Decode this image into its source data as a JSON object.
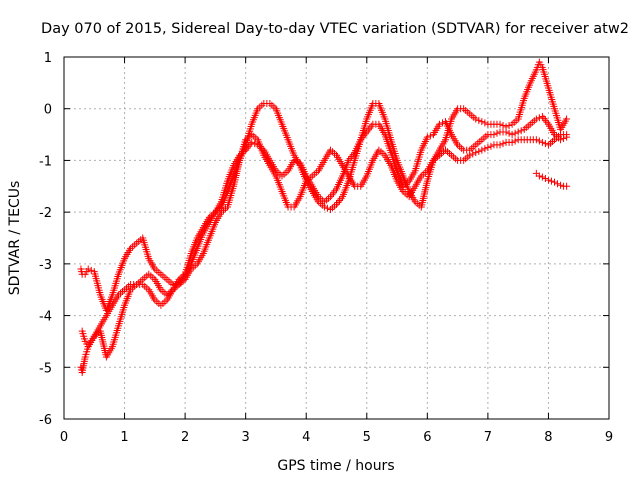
{
  "chart_data": {
    "type": "scatter",
    "title": "Day 070 of 2015, Sidereal Day-to-day VTEC variation (SDTVAR) for receiver atw2",
    "xlabel": "GPS time / hours",
    "ylabel": "SDTVAR / TECUs",
    "xlim": [
      0,
      9
    ],
    "ylim": [
      -6,
      1
    ],
    "x_ticks": [
      0,
      1,
      2,
      3,
      4,
      5,
      6,
      7,
      8,
      9
    ],
    "y_ticks": [
      1,
      0,
      -1,
      -2,
      -3,
      -4,
      -5,
      -6
    ],
    "x_tick_labels": [
      "0",
      "1",
      "2",
      "3",
      "4",
      "5",
      "6",
      "7",
      "8",
      "9"
    ],
    "y_tick_labels": [
      "1",
      "0",
      "-1",
      "-2",
      "-3",
      "-4",
      "-5",
      "-6"
    ],
    "grid": true,
    "marker": "+",
    "color": "#ff0000",
    "series": [
      {
        "x": [
          0.28,
          0.3,
          0.35,
          0.4,
          0.5,
          0.6,
          0.7,
          0.8,
          0.9,
          1.0,
          1.1,
          1.2,
          1.3,
          1.4,
          1.5,
          1.6,
          1.7,
          1.8,
          1.9,
          2.0,
          2.1,
          2.2,
          2.3,
          2.4,
          2.5,
          2.6,
          2.7,
          2.8,
          2.9,
          3.0,
          3.1,
          3.2,
          3.3,
          3.4,
          3.5,
          3.6,
          3.7,
          3.8,
          3.9,
          4.0,
          4.1,
          4.2,
          4.3,
          4.4,
          4.5,
          4.6,
          4.7,
          4.8,
          4.9,
          5.0,
          5.1,
          5.2,
          5.3,
          5.4,
          5.5,
          5.6,
          5.7,
          5.8,
          5.9,
          6.0,
          6.1,
          6.2,
          6.3,
          6.4,
          6.5,
          6.6,
          6.7,
          6.8,
          6.9,
          7.0,
          7.1,
          7.2,
          7.3,
          7.4,
          7.5,
          7.6,
          7.7,
          7.8,
          7.85,
          7.9,
          8.0,
          8.1,
          8.2,
          8.3
        ],
        "y": [
          -5.0,
          -5.1,
          -4.8,
          -4.6,
          -4.4,
          -4.2,
          -4.0,
          -3.8,
          -3.6,
          -3.5,
          -3.4,
          -3.4,
          -3.4,
          -3.5,
          -3.7,
          -3.8,
          -3.7,
          -3.5,
          -3.3,
          -3.2,
          -3.0,
          -2.7,
          -2.4,
          -2.2,
          -2.0,
          -1.9,
          -1.6,
          -1.3,
          -1.0,
          -0.7,
          -0.3,
          0.0,
          0.1,
          0.1,
          0.0,
          -0.3,
          -0.6,
          -0.9,
          -1.1,
          -1.4,
          -1.6,
          -1.8,
          -1.9,
          -1.95,
          -1.85,
          -1.7,
          -1.4,
          -1.0,
          -0.6,
          -0.2,
          0.1,
          0.1,
          -0.2,
          -0.6,
          -1.0,
          -1.3,
          -1.6,
          -1.8,
          -1.9,
          -1.4,
          -1.0,
          -0.8,
          -0.6,
          -0.2,
          0.0,
          0.0,
          -0.1,
          -0.2,
          -0.25,
          -0.3,
          -0.3,
          -0.3,
          -0.35,
          -0.3,
          -0.2,
          0.2,
          0.5,
          0.75,
          0.9,
          0.8,
          0.4,
          0.0,
          -0.4,
          -0.2
        ]
      },
      {
        "x": [
          0.28,
          0.3,
          0.35,
          0.4,
          0.5,
          0.6,
          0.7,
          0.8,
          0.9,
          1.0,
          1.1,
          1.2,
          1.3,
          1.4,
          1.5,
          1.6,
          1.7,
          1.8,
          1.9,
          2.0,
          2.1,
          2.2,
          2.3,
          2.4,
          2.5,
          2.6,
          2.7,
          2.8,
          2.9,
          3.0,
          3.1,
          3.2,
          3.3,
          3.4,
          3.5,
          3.6,
          3.7,
          3.8,
          3.9,
          4.0,
          4.1,
          4.2,
          4.3,
          4.4,
          4.5,
          4.6,
          4.7,
          4.8,
          4.9,
          5.0,
          5.1,
          5.2,
          5.3,
          5.4,
          5.5,
          5.6,
          5.7,
          5.8,
          5.9,
          6.0,
          6.1,
          6.2,
          6.3,
          6.4,
          6.5,
          6.6,
          6.7,
          6.8,
          6.9,
          7.0,
          7.1,
          7.2,
          7.3,
          7.4,
          7.5,
          7.6,
          7.7,
          7.8,
          7.9,
          8.0,
          8.1,
          8.2,
          8.3
        ],
        "y": [
          -3.1,
          -3.2,
          -3.2,
          -3.1,
          -3.15,
          -3.6,
          -3.9,
          -3.6,
          -3.2,
          -2.9,
          -2.7,
          -2.6,
          -2.5,
          -2.9,
          -3.1,
          -3.2,
          -3.3,
          -3.4,
          -3.4,
          -3.2,
          -2.8,
          -2.5,
          -2.3,
          -2.1,
          -2.0,
          -1.8,
          -1.4,
          -1.1,
          -0.9,
          -0.8,
          -0.65,
          -0.7,
          -0.8,
          -1.0,
          -1.2,
          -1.3,
          -1.2,
          -1.0,
          -1.05,
          -1.3,
          -1.5,
          -1.7,
          -1.8,
          -1.7,
          -1.55,
          -1.3,
          -1.0,
          -0.85,
          -0.6,
          -0.45,
          -0.3,
          -0.3,
          -0.5,
          -0.85,
          -1.2,
          -1.5,
          -1.4,
          -1.2,
          -0.8,
          -0.55,
          -0.5,
          -0.3,
          -0.25,
          -0.5,
          -0.7,
          -0.8,
          -0.8,
          -0.7,
          -0.6,
          -0.5,
          -0.5,
          -0.45,
          -0.45,
          -0.5,
          -0.45,
          -0.4,
          -0.3,
          -0.2,
          -0.15,
          -0.3,
          -0.5,
          -0.6,
          -0.55
        ]
      },
      {
        "x": [
          0.3,
          0.35,
          0.4,
          0.5,
          0.6,
          0.7,
          0.8,
          0.9,
          1.0,
          1.1,
          1.2,
          1.3,
          1.4,
          1.5,
          1.6,
          1.7,
          1.8,
          1.9,
          2.0,
          2.1,
          2.2,
          2.3,
          2.4,
          2.5,
          2.6,
          2.7,
          2.8,
          2.9,
          3.0,
          3.1,
          3.2,
          3.3,
          3.4,
          3.5,
          3.6,
          3.7,
          3.8,
          3.9,
          4.0,
          4.1,
          4.2,
          4.3,
          4.4,
          4.5,
          4.6,
          4.7,
          4.8,
          4.9,
          5.0,
          5.1,
          5.2,
          5.3,
          5.4,
          5.5,
          5.6,
          5.7,
          5.8,
          5.9,
          6.0,
          6.1,
          6.2,
          6.3,
          6.4,
          6.5,
          6.6,
          6.7,
          6.8,
          6.9,
          7.0,
          7.1,
          7.2,
          7.3,
          7.4,
          7.5,
          7.6,
          7.7,
          7.8,
          7.9,
          8.0,
          8.1,
          8.2,
          8.3
        ],
        "y": [
          -4.3,
          -4.5,
          -4.6,
          -4.4,
          -4.3,
          -4.8,
          -4.6,
          -4.2,
          -3.8,
          -3.5,
          -3.4,
          -3.3,
          -3.2,
          -3.3,
          -3.5,
          -3.6,
          -3.5,
          -3.4,
          -3.3,
          -3.1,
          -3.0,
          -2.8,
          -2.5,
          -2.2,
          -2.0,
          -1.9,
          -1.5,
          -1.0,
          -0.6,
          -0.5,
          -0.6,
          -0.9,
          -1.1,
          -1.3,
          -1.6,
          -1.9,
          -1.9,
          -1.7,
          -1.4,
          -1.3,
          -1.2,
          -1.0,
          -0.8,
          -0.9,
          -1.1,
          -1.3,
          -1.5,
          -1.5,
          -1.3,
          -1.0,
          -0.8,
          -0.9,
          -1.1,
          -1.4,
          -1.6,
          -1.7,
          -1.5,
          -1.3,
          -1.2,
          -1.0,
          -0.9,
          -0.8,
          -0.9,
          -1.0,
          -1.0,
          -0.9,
          -0.85,
          -0.8,
          -0.75,
          -0.7,
          -0.7,
          -0.65,
          -0.65,
          -0.6,
          -0.6,
          -0.6,
          -0.6,
          -0.65,
          -0.7,
          -0.6,
          -0.5,
          -0.5
        ]
      },
      {
        "x": [
          7.8,
          7.85,
          7.9,
          7.95,
          8.0,
          8.05,
          8.1,
          8.15,
          8.2,
          8.25,
          8.3
        ],
        "y": [
          -1.25,
          -1.3,
          -1.32,
          -1.35,
          -1.38,
          -1.4,
          -1.42,
          -1.45,
          -1.48,
          -1.5,
          -1.5
        ]
      }
    ]
  }
}
